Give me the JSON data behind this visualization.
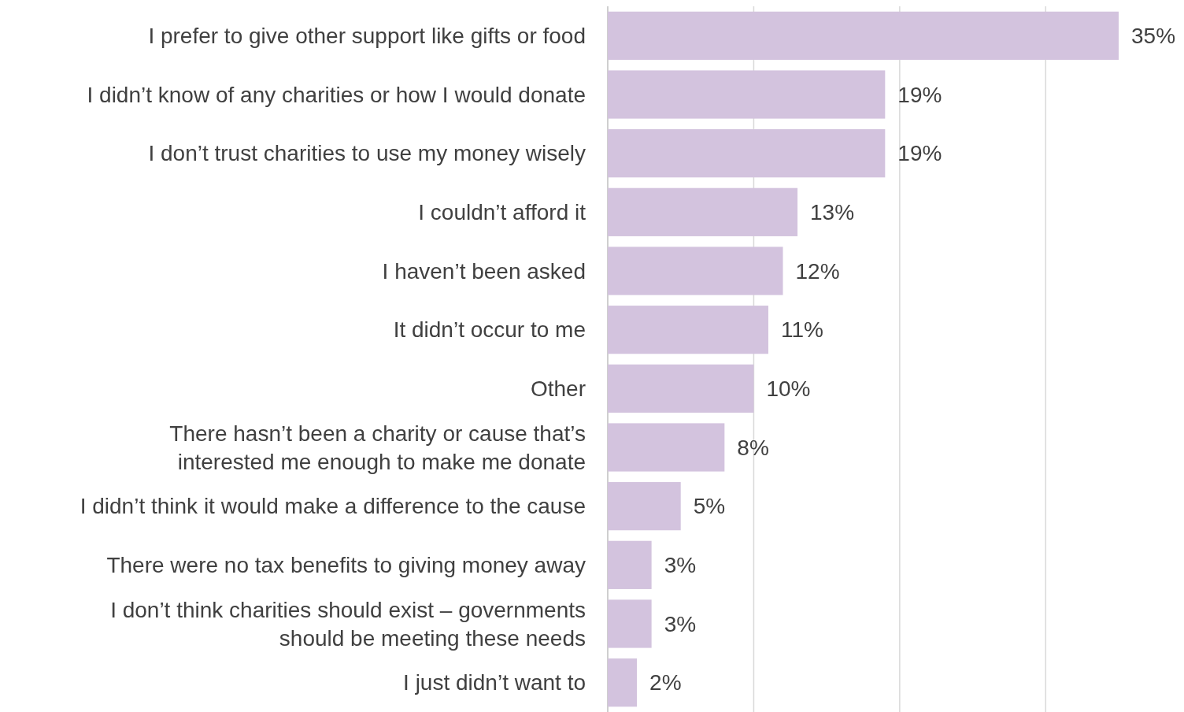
{
  "chart_data": {
    "type": "bar",
    "orientation": "horizontal",
    "categories": [
      "I prefer to give other support like gifts or food",
      "I didn’t know of any charities or how I would donate",
      "I don’t trust charities to use my money wisely",
      "I couldn’t afford it",
      "I haven’t been asked",
      "It didn’t occur to me",
      "Other",
      "There hasn’t been a charity or cause that’s\ninterested me enough to make me donate",
      "I didn’t think it would make a difference to the cause",
      "There were no tax benefits to giving money away",
      "I don’t think charities should exist – governments\nshould be meeting these needs",
      "I just didn’t want to"
    ],
    "values": [
      35,
      19,
      19,
      13,
      12,
      11,
      10,
      8,
      5,
      3,
      3,
      2
    ],
    "value_labels": [
      "35%",
      "19%",
      "19%",
      "13%",
      "12%",
      "11%",
      "10%",
      "8%",
      "5%",
      "3%",
      "3%",
      "2%"
    ],
    "color": "#d3c3de",
    "xlim": [
      0,
      35
    ],
    "xticks": [
      {
        "value": 0,
        "label": null
      },
      {
        "value": 10,
        "label": null
      },
      {
        "value": 20,
        "label": null
      },
      {
        "value": 30,
        "label": null
      }
    ],
    "grid": "x",
    "tick_labels": "y"
  }
}
